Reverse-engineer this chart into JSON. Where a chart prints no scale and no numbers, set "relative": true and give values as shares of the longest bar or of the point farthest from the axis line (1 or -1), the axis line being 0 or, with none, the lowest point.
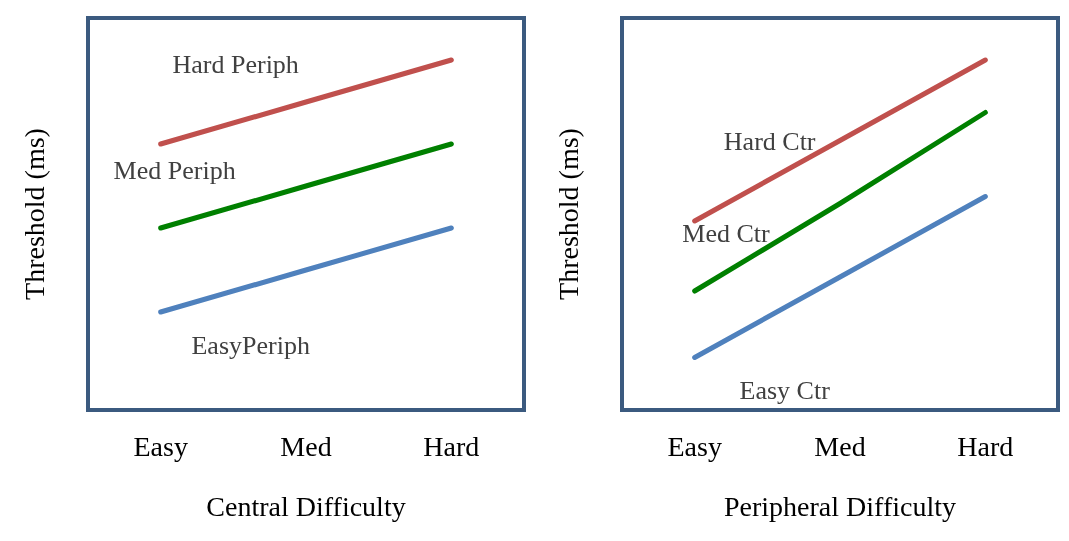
{
  "chart_data": [
    {
      "type": "line",
      "relative": true,
      "xlabel": "Central Difficulty",
      "ylabel": "Threshold (ms)",
      "categories": [
        "Easy",
        "Med",
        "Hard"
      ],
      "marker": "none",
      "series": [
        {
          "name": "Hard Periph",
          "color": "#c0504d",
          "values": [
            0.76,
            0.88,
            1.0
          ]
        },
        {
          "name": "Med Periph",
          "color": "#008000",
          "values": [
            0.52,
            0.64,
            0.76
          ]
        },
        {
          "name": "EasyPeriph",
          "color": "#4f81bd",
          "values": [
            0.28,
            0.4,
            0.52
          ]
        }
      ]
    },
    {
      "type": "line",
      "relative": true,
      "xlabel": "Peripheral Difficulty",
      "ylabel": "Threshold (ms)",
      "categories": [
        "Easy",
        "Med",
        "Hard"
      ],
      "marker": "none",
      "series": [
        {
          "name": "Hard Ctr",
          "color": "#c0504d",
          "values": [
            0.54,
            0.77,
            1.0
          ]
        },
        {
          "name": "Med Ctr",
          "color": "#008000",
          "values": [
            0.34,
            0.59,
            0.85
          ]
        },
        {
          "name": "Easy Ctr",
          "color": "#4f81bd",
          "values": [
            0.15,
            0.38,
            0.61
          ]
        }
      ]
    }
  ]
}
